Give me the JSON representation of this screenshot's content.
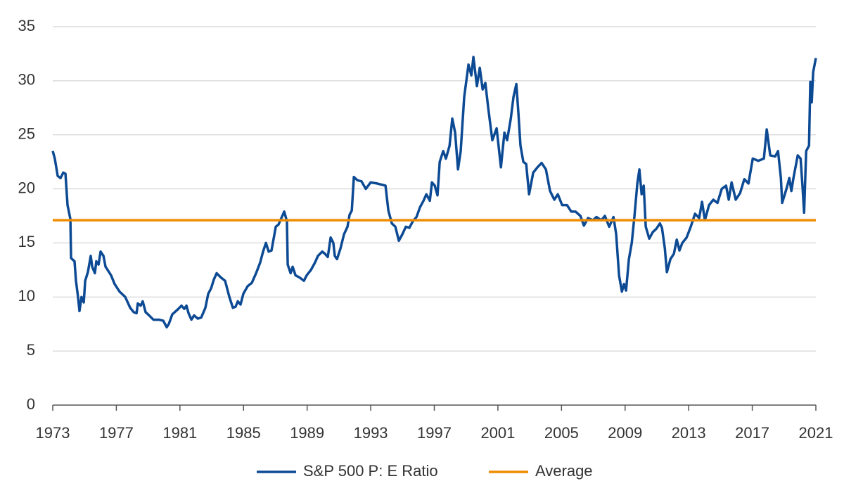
{
  "chart_data": {
    "type": "line",
    "xlim": [
      1973,
      2021
    ],
    "xticks": [
      1973,
      1977,
      1981,
      1985,
      1989,
      1993,
      1997,
      2001,
      2005,
      2009,
      2013,
      2017,
      2021
    ],
    "ylim": [
      0,
      35
    ],
    "yticks": [
      0,
      5,
      10,
      15,
      20,
      25,
      30,
      35
    ],
    "grid": true,
    "legend": "bottom",
    "series": [
      {
        "name": "S&P 500 P: E Ratio",
        "color": "#0d4a94",
        "x": [
          1973.0,
          1973.13,
          1973.31,
          1973.49,
          1973.66,
          1973.8,
          1973.93,
          1974.11,
          1974.15,
          1974.37,
          1974.46,
          1974.59,
          1974.68,
          1974.81,
          1974.95,
          1975.04,
          1975.21,
          1975.39,
          1975.48,
          1975.65,
          1975.74,
          1975.88,
          1976.01,
          1976.19,
          1976.32,
          1976.54,
          1976.67,
          1976.89,
          1977.2,
          1977.56,
          1977.87,
          1978.09,
          1978.27,
          1978.35,
          1978.53,
          1978.66,
          1978.84,
          1979.06,
          1979.33,
          1979.68,
          1979.95,
          1980.17,
          1980.3,
          1980.52,
          1980.83,
          1981.1,
          1981.27,
          1981.41,
          1981.54,
          1981.72,
          1981.89,
          1982.12,
          1982.34,
          1982.6,
          1982.78,
          1982.96,
          1983.13,
          1983.31,
          1983.58,
          1983.84,
          1984.11,
          1984.33,
          1984.5,
          1984.64,
          1984.81,
          1984.99,
          1985.26,
          1985.52,
          1985.79,
          1986.05,
          1986.23,
          1986.41,
          1986.58,
          1986.76,
          1987.03,
          1987.2,
          1987.38,
          1987.56,
          1987.73,
          1987.78,
          1987.96,
          1988.09,
          1988.27,
          1988.53,
          1988.8,
          1988.97,
          1989.24,
          1989.5,
          1989.68,
          1989.95,
          1990.12,
          1990.3,
          1990.48,
          1990.65,
          1990.74,
          1990.88,
          1991.1,
          1991.32,
          1991.54,
          1991.67,
          1991.81,
          1991.94,
          1992.16,
          1992.42,
          1992.69,
          1993.0,
          1993.4,
          1993.93,
          1994.11,
          1994.33,
          1994.55,
          1994.77,
          1994.99,
          1995.21,
          1995.43,
          1995.65,
          1995.88,
          1996.1,
          1996.32,
          1996.5,
          1996.72,
          1996.85,
          1997.03,
          1997.2,
          1997.34,
          1997.56,
          1997.73,
          1997.96,
          1998.13,
          1998.31,
          1998.49,
          1998.66,
          1998.88,
          1999.15,
          1999.33,
          1999.46,
          1999.68,
          1999.86,
          2000.04,
          2000.21,
          2000.39,
          2000.65,
          2000.92,
          2001.19,
          2001.41,
          2001.58,
          2001.81,
          2001.98,
          2002.16,
          2002.29,
          2002.42,
          2002.6,
          2002.78,
          2002.96,
          2003.22,
          2003.49,
          2003.75,
          2004.02,
          2004.28,
          2004.55,
          2004.77,
          2005.04,
          2005.35,
          2005.61,
          2005.88,
          2006.19,
          2006.41,
          2006.67,
          2006.98,
          2007.2,
          2007.51,
          2007.73,
          2008.0,
          2008.27,
          2008.44,
          2008.62,
          2008.8,
          2008.93,
          2009.06,
          2009.24,
          2009.42,
          2009.59,
          2009.77,
          2009.9,
          2010.04,
          2010.17,
          2010.3,
          2010.52,
          2010.74,
          2010.96,
          2011.19,
          2011.32,
          2011.5,
          2011.63,
          2011.85,
          2012.07,
          2012.25,
          2012.42,
          2012.6,
          2012.87,
          2013.13,
          2013.4,
          2013.66,
          2013.84,
          2014.02,
          2014.28,
          2014.55,
          2014.81,
          2015.08,
          2015.35,
          2015.52,
          2015.7,
          2015.96,
          2016.23,
          2016.5,
          2016.76,
          2017.03,
          2017.38,
          2017.73,
          2017.91,
          2018.13,
          2018.44,
          2018.62,
          2018.8,
          2018.88,
          2019.15,
          2019.33,
          2019.46,
          2019.59,
          2019.86,
          2020.04,
          2020.17,
          2020.26,
          2020.39,
          2020.57,
          2020.65,
          2020.74,
          2020.83,
          2021.0
        ],
        "values": [
          23.5,
          22.8,
          21.2,
          21.0,
          21.5,
          21.4,
          18.5,
          17.2,
          13.6,
          13.3,
          11.5,
          10.0,
          8.7,
          10.0,
          9.5,
          11.5,
          12.3,
          13.8,
          12.8,
          12.2,
          13.3,
          13.0,
          14.2,
          13.8,
          12.8,
          12.3,
          12.0,
          11.2,
          10.5,
          10.0,
          9.0,
          8.6,
          8.5,
          9.4,
          9.2,
          9.6,
          8.6,
          8.3,
          7.9,
          7.9,
          7.8,
          7.2,
          7.5,
          8.4,
          8.8,
          9.2,
          8.9,
          9.2,
          8.5,
          7.9,
          8.3,
          8.0,
          8.1,
          9.0,
          10.3,
          10.8,
          11.6,
          12.2,
          11.8,
          11.5,
          10.0,
          9.0,
          9.1,
          9.6,
          9.3,
          10.3,
          11.0,
          11.3,
          12.2,
          13.2,
          14.2,
          15.0,
          14.2,
          14.3,
          16.5,
          16.7,
          17.3,
          17.9,
          17.0,
          13.0,
          12.2,
          12.8,
          12.0,
          11.8,
          11.5,
          12.0,
          12.5,
          13.2,
          13.8,
          14.2,
          14.0,
          13.7,
          15.5,
          15.0,
          13.8,
          13.5,
          14.5,
          15.8,
          16.5,
          17.6,
          18.0,
          21.1,
          20.8,
          20.7,
          20.0,
          20.6,
          20.5,
          20.3,
          18.0,
          16.8,
          16.5,
          15.2,
          15.8,
          16.5,
          16.4,
          17.0,
          17.4,
          18.3,
          18.9,
          19.5,
          18.9,
          20.6,
          20.3,
          19.4,
          22.5,
          23.5,
          22.8,
          24.0,
          26.5,
          25.2,
          21.8,
          23.5,
          28.5,
          31.5,
          30.5,
          32.2,
          29.5,
          31.2,
          29.2,
          29.8,
          27.5,
          24.5,
          25.6,
          22.0,
          25.2,
          24.5,
          26.5,
          28.5,
          29.7,
          27.0,
          24.0,
          22.5,
          22.3,
          19.5,
          21.5,
          22.0,
          22.4,
          21.8,
          19.8,
          19.0,
          19.5,
          18.5,
          18.5,
          17.9,
          17.9,
          17.5,
          16.6,
          17.3,
          17.1,
          17.4,
          17.1,
          17.5,
          16.5,
          17.4,
          15.8,
          12.0,
          10.5,
          11.2,
          10.6,
          13.5,
          15.0,
          17.5,
          20.5,
          21.8,
          19.5,
          20.3,
          16.5,
          15.4,
          16.0,
          16.3,
          16.8,
          16.4,
          14.5,
          12.3,
          13.5,
          14.0,
          15.3,
          14.3,
          15.0,
          15.5,
          16.5,
          17.7,
          17.3,
          18.8,
          17.1,
          18.5,
          19.0,
          18.7,
          20.0,
          20.3,
          19.0,
          20.6,
          19.0,
          19.6,
          20.9,
          20.5,
          22.8,
          22.6,
          22.8,
          25.5,
          23.1,
          23.0,
          23.5,
          21.0,
          18.7,
          20.0,
          21.0,
          19.8,
          21.0,
          23.1,
          22.8,
          20.0,
          17.8,
          23.5,
          24.0,
          29.9,
          28.0,
          30.8,
          32.1
        ]
      },
      {
        "name": "Average",
        "color": "#f08c00",
        "x": [
          1973,
          2021
        ],
        "values": [
          17.1,
          17.1
        ]
      }
    ]
  }
}
